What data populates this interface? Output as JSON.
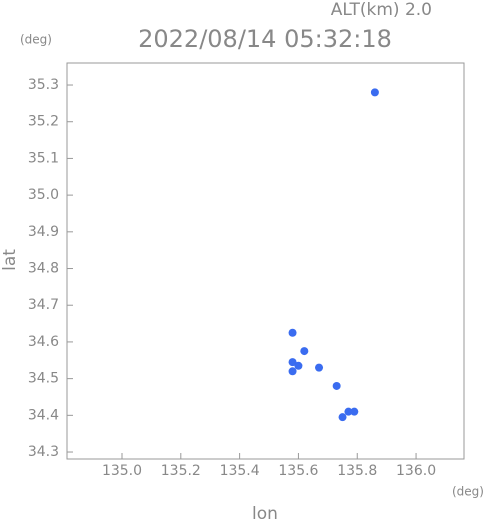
{
  "chart_data": {
    "type": "scatter",
    "title": "2022/08/14 05:32:18",
    "subtitle": "ALT(km) 2.0",
    "y_unit": "(deg)",
    "x_unit": "(deg)",
    "x_label": "lon",
    "y_label": "lat",
    "xlim": [
      134.813,
      136.163
    ],
    "ylim": [
      34.281,
      35.36
    ],
    "xticks": [
      {
        "value": 135,
        "label": "135.0"
      },
      135.2,
      135.4,
      135.6,
      135.8,
      {
        "value": 136,
        "label": "136.0"
      }
    ],
    "yticks": [
      34.3,
      34.4,
      34.5,
      34.6,
      34.7,
      34.8,
      34.9,
      {
        "value": 35,
        "label": "35.0"
      },
      35.1,
      35.2,
      35.3
    ],
    "series": [
      {
        "color": "#3a6cf0",
        "x": [
          135.86,
          135.58,
          135.62,
          135.58,
          135.6,
          135.58,
          135.67,
          135.73,
          135.75,
          135.77,
          135.79
        ],
        "values": [
          35.28,
          34.625,
          34.575,
          34.545,
          34.535,
          34.52,
          34.53,
          34.48,
          34.395,
          34.41,
          34.41
        ]
      }
    ]
  }
}
